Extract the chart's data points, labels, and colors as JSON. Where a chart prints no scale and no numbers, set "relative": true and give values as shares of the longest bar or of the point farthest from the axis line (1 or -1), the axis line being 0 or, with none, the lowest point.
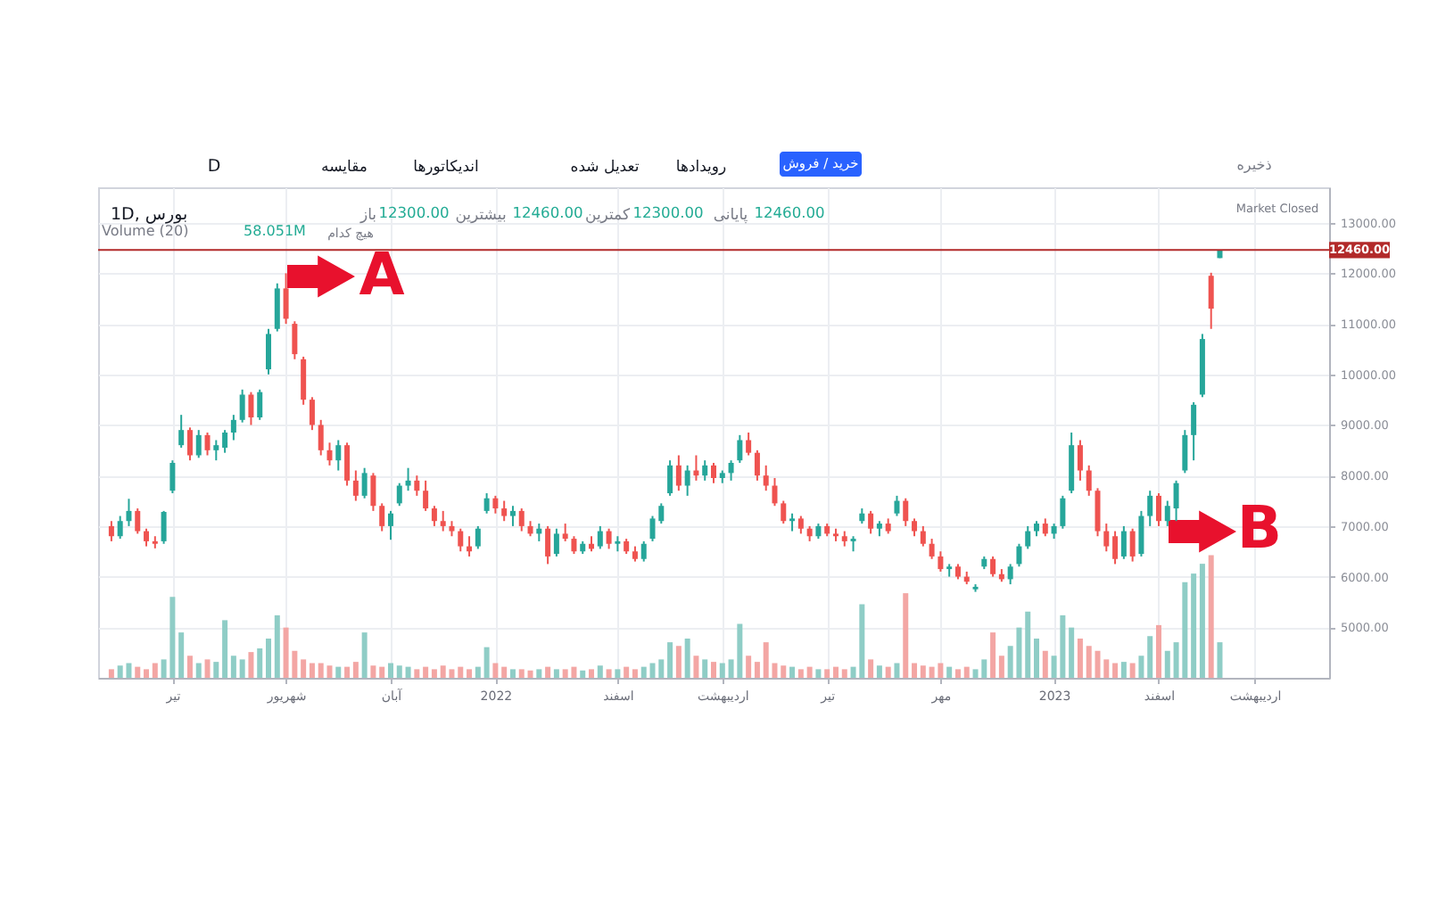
{
  "chart_data": [
    {
      "type": "candlestick",
      "title": "1D, بورس",
      "categories": [
        null,
        null,
        null,
        null,
        null,
        null,
        null,
        "تیر",
        null,
        null,
        null,
        null,
        null,
        null,
        null,
        null,
        null,
        null,
        null,
        null,
        "شهریور",
        null,
        null,
        null,
        null,
        null,
        null,
        null,
        null,
        null,
        null,
        null,
        "آبان",
        null,
        null,
        null,
        null,
        null,
        null,
        null,
        null,
        null,
        null,
        null,
        "2022",
        null,
        null,
        null,
        null,
        null,
        null,
        null,
        null,
        null,
        null,
        null,
        null,
        null,
        "اسفند",
        null,
        null,
        null,
        null,
        null,
        null,
        null,
        null,
        null,
        null,
        null,
        "اردیبهشت",
        null,
        null,
        null,
        null,
        null,
        null,
        null,
        null,
        null,
        null,
        null,
        "تیر",
        null,
        null,
        null,
        null,
        null,
        null,
        null,
        null,
        null,
        null,
        null,
        null,
        "مهر",
        null,
        null,
        null,
        null,
        null,
        null,
        null,
        null,
        null,
        null,
        null,
        null,
        "2023",
        null,
        null,
        null,
        null,
        null,
        null,
        null,
        null,
        null,
        null,
        null,
        "اسفند",
        null,
        null,
        null,
        null,
        null,
        null,
        null,
        null,
        null,
        null,
        "اردیبهشت",
        null,
        null,
        null,
        null,
        null,
        null,
        null
      ],
      "ohlc": [
        [
          7000,
          7100,
          6700,
          6800
        ],
        [
          6800,
          7200,
          6750,
          7100
        ],
        [
          7100,
          7540,
          7000,
          7300
        ],
        [
          7300,
          7350,
          6850,
          6900
        ],
        [
          6900,
          6950,
          6600,
          6700
        ],
        [
          6700,
          6800,
          6560,
          6650
        ],
        [
          6700,
          7300,
          6650,
          7280
        ],
        [
          7700,
          8300,
          7650,
          8250
        ],
        [
          8600,
          9200,
          8550,
          8900
        ],
        [
          8900,
          8950,
          8300,
          8400
        ],
        [
          8400,
          8900,
          8350,
          8800
        ],
        [
          8800,
          8850,
          8400,
          8500
        ],
        [
          8500,
          8700,
          8300,
          8600
        ],
        [
          8550,
          8900,
          8450,
          8850
        ],
        [
          8850,
          9200,
          8700,
          9100
        ],
        [
          9100,
          9700,
          9050,
          9600
        ],
        [
          9600,
          9650,
          9000,
          9150
        ],
        [
          9150,
          9700,
          9100,
          9650
        ],
        [
          10100,
          10900,
          10000,
          10800
        ],
        [
          10900,
          11800,
          10850,
          11700
        ],
        [
          11700,
          12000,
          11000,
          11100
        ],
        [
          11000,
          11050,
          10300,
          10400
        ],
        [
          10300,
          10350,
          9400,
          9500
        ],
        [
          9500,
          9550,
          8900,
          9000
        ],
        [
          9000,
          9100,
          8400,
          8500
        ],
        [
          8500,
          8650,
          8200,
          8300
        ],
        [
          8300,
          8700,
          8100,
          8600
        ],
        [
          8600,
          8650,
          7800,
          7900
        ],
        [
          7900,
          8100,
          7500,
          7600
        ],
        [
          7600,
          8150,
          7550,
          8050
        ],
        [
          8000,
          8050,
          7300,
          7400
        ],
        [
          7400,
          7450,
          6900,
          7000
        ],
        [
          7000,
          7300,
          6730,
          7250
        ],
        [
          7450,
          7850,
          7400,
          7800
        ],
        [
          7800,
          8150,
          7700,
          7900
        ],
        [
          7900,
          8000,
          7600,
          7700
        ],
        [
          7700,
          7900,
          7300,
          7350
        ],
        [
          7350,
          7400,
          7000,
          7100
        ],
        [
          7100,
          7300,
          6900,
          7000
        ],
        [
          7000,
          7100,
          6800,
          6900
        ],
        [
          6900,
          6950,
          6500,
          6600
        ],
        [
          6600,
          6800,
          6400,
          6500
        ],
        [
          6600,
          7000,
          6550,
          6950
        ],
        [
          7300,
          7650,
          7250,
          7550
        ],
        [
          7550,
          7600,
          7250,
          7350
        ],
        [
          7350,
          7500,
          7100,
          7200
        ],
        [
          7200,
          7400,
          7000,
          7300
        ],
        [
          7300,
          7350,
          6900,
          7000
        ],
        [
          7000,
          7100,
          6800,
          6850
        ],
        [
          6850,
          7050,
          6700,
          6950
        ],
        [
          6950,
          7000,
          6250,
          6400
        ],
        [
          6450,
          6950,
          6400,
          6850
        ],
        [
          6850,
          7050,
          6700,
          6750
        ],
        [
          6750,
          6800,
          6450,
          6500
        ],
        [
          6500,
          6700,
          6450,
          6650
        ],
        [
          6650,
          6800,
          6500,
          6550
        ],
        [
          6600,
          7000,
          6550,
          6900
        ],
        [
          6900,
          6950,
          6550,
          6650
        ],
        [
          6650,
          6800,
          6500,
          6700
        ],
        [
          6700,
          6750,
          6450,
          6500
        ],
        [
          6500,
          6600,
          6300,
          6350
        ],
        [
          6350,
          6700,
          6300,
          6650
        ],
        [
          6750,
          7200,
          6700,
          7150
        ],
        [
          7100,
          7450,
          7050,
          7400
        ],
        [
          7650,
          8300,
          7600,
          8200
        ],
        [
          8200,
          8400,
          7700,
          7800
        ],
        [
          7800,
          8200,
          7600,
          8100
        ],
        [
          8100,
          8400,
          7900,
          8000
        ],
        [
          8000,
          8300,
          7900,
          8200
        ],
        [
          8200,
          8250,
          7850,
          7950
        ],
        [
          7950,
          8100,
          7850,
          8050
        ],
        [
          8050,
          8300,
          7900,
          8250
        ],
        [
          8300,
          8800,
          8250,
          8700
        ],
        [
          8700,
          8850,
          8400,
          8450
        ],
        [
          8450,
          8500,
          7900,
          8000
        ],
        [
          8000,
          8200,
          7700,
          7800
        ],
        [
          7800,
          7950,
          7400,
          7450
        ],
        [
          7450,
          7500,
          7050,
          7100
        ],
        [
          7100,
          7250,
          6900,
          7150
        ],
        [
          7150,
          7200,
          6850,
          6950
        ],
        [
          6950,
          7000,
          6700,
          6800
        ],
        [
          6800,
          7050,
          6750,
          7000
        ],
        [
          7000,
          7050,
          6800,
          6850
        ],
        [
          6850,
          6950,
          6700,
          6800
        ],
        [
          6800,
          6900,
          6600,
          6700
        ],
        [
          6700,
          6800,
          6500,
          6750
        ],
        [
          7100,
          7350,
          7050,
          7250
        ],
        [
          7250,
          7300,
          6850,
          6950
        ],
        [
          6950,
          7100,
          6800,
          7050
        ],
        [
          7050,
          7150,
          6850,
          6900
        ],
        [
          7250,
          7600,
          7200,
          7500
        ],
        [
          7500,
          7550,
          7000,
          7100
        ],
        [
          7100,
          7150,
          6800,
          6900
        ],
        [
          6900,
          7000,
          6600,
          6650
        ],
        [
          6650,
          6750,
          6350,
          6400
        ],
        [
          6400,
          6500,
          6100,
          6150
        ],
        [
          6150,
          6250,
          6000,
          6200
        ],
        [
          6200,
          6250,
          5950,
          6000
        ],
        [
          6000,
          6100,
          5850,
          5900
        ],
        [
          5750,
          5850,
          5700,
          5800
        ],
        [
          6200,
          6400,
          6150,
          6350
        ],
        [
          6350,
          6400,
          6000,
          6050
        ],
        [
          6050,
          6150,
          5900,
          5950
        ],
        [
          5950,
          6250,
          5850,
          6200
        ],
        [
          6250,
          6650,
          6200,
          6600
        ],
        [
          6600,
          7000,
          6550,
          6900
        ],
        [
          6900,
          7100,
          6800,
          7050
        ],
        [
          7050,
          7150,
          6800,
          6850
        ],
        [
          6850,
          7050,
          6750,
          7000
        ],
        [
          7000,
          7600,
          6950,
          7550
        ],
        [
          7700,
          8850,
          7650,
          8600
        ],
        [
          8600,
          8700,
          7900,
          8100
        ],
        [
          8100,
          8200,
          7600,
          7700
        ],
        [
          7700,
          7750,
          6800,
          6900
        ],
        [
          6900,
          7050,
          6500,
          6600
        ],
        [
          6800,
          6900,
          6250,
          6350
        ],
        [
          6400,
          7000,
          6350,
          6900
        ],
        [
          6900,
          6950,
          6300,
          6400
        ],
        [
          6450,
          7300,
          6400,
          7200
        ],
        [
          7200,
          7700,
          7000,
          7600
        ],
        [
          7600,
          7650,
          7000,
          7100
        ],
        [
          7100,
          7500,
          7000,
          7400
        ],
        [
          7350,
          7900,
          7100,
          7850
        ],
        [
          8100,
          8900,
          8050,
          8800
        ],
        [
          8800,
          9450,
          8300,
          9400
        ],
        [
          9600,
          10800,
          9550,
          10700
        ],
        [
          11950,
          12010,
          10900,
          11300
        ],
        [
          12300,
          12460,
          12300,
          12460
        ],
        null,
        null,
        null,
        null,
        null,
        null,
        null,
        null,
        null,
        null,
        null
      ],
      "colors": [
        "#ef5350",
        "#26a69a",
        "#26a69a",
        "#ef5350",
        "#ef5350",
        "#ef5350",
        "#26a69a",
        "#26a69a",
        "#26a69a",
        "#ef5350",
        "#26a69a",
        "#ef5350",
        "#26a69a",
        "#26a69a",
        "#26a69a",
        "#26a69a",
        "#ef5350",
        "#26a69a",
        "#26a69a",
        "#26a69a",
        "#ef5350",
        "#ef5350",
        "#ef5350",
        "#ef5350",
        "#ef5350",
        "#ef5350",
        "#26a69a",
        "#ef5350",
        "#ef5350",
        "#26a69a",
        "#ef5350",
        "#ef5350",
        "#26a69a",
        "#26a69a",
        "#26a69a",
        "#ef5350",
        "#ef5350",
        "#ef5350",
        "#ef5350",
        "#ef5350",
        "#ef5350",
        "#ef5350",
        "#26a69a",
        "#26a69a",
        "#ef5350",
        "#ef5350",
        "#26a69a",
        "#ef5350",
        "#ef5350",
        "#26a69a",
        "#ef5350",
        "#26a69a",
        "#ef5350",
        "#ef5350",
        "#26a69a",
        "#ef5350",
        "#26a69a",
        "#ef5350",
        "#26a69a",
        "#ef5350",
        "#ef5350",
        "#26a69a",
        "#26a69a",
        "#26a69a",
        "#26a69a",
        "#ef5350",
        "#26a69a",
        "#ef5350",
        "#26a69a",
        "#ef5350",
        "#26a69a",
        "#26a69a",
        "#26a69a",
        "#ef5350",
        "#ef5350",
        "#ef5350",
        "#ef5350",
        "#ef5350",
        "#26a69a",
        "#ef5350",
        "#ef5350",
        "#26a69a",
        "#ef5350",
        "#ef5350",
        "#ef5350",
        "#26a69a",
        "#26a69a",
        "#ef5350",
        "#26a69a",
        "#ef5350",
        "#26a69a",
        "#ef5350",
        "#ef5350",
        "#ef5350",
        "#ef5350",
        "#ef5350",
        "#26a69a",
        "#ef5350",
        "#ef5350",
        "#26a69a",
        "#26a69a",
        "#ef5350",
        "#ef5350",
        "#26a69a",
        "#26a69a",
        "#26a69a",
        "#26a69a",
        "#ef5350",
        "#26a69a",
        "#26a69a",
        "#26a69a",
        "#ef5350",
        "#ef5350",
        "#ef5350",
        "#ef5350",
        "#ef5350",
        "#26a69a",
        "#ef5350",
        "#26a69a",
        "#26a69a",
        "#ef5350",
        "#26a69a",
        "#26a69a",
        "#26a69a",
        "#26a69a",
        "#26a69a",
        "#ef5350",
        "#26a69a",
        null,
        null,
        null,
        null,
        null,
        null,
        null,
        null,
        null,
        null,
        null
      ],
      "ylim": [
        4000,
        13700
      ],
      "yticks": [
        {
          "value": 5000,
          "label": "5000.00"
        },
        {
          "value": 6000,
          "label": "6000.00"
        },
        {
          "value": 7000,
          "label": "7000.00"
        },
        {
          "value": 8000,
          "label": "8000.00"
        },
        {
          "value": 9000,
          "label": "9000.00"
        },
        {
          "value": 10000,
          "label": "10000.00"
        },
        {
          "value": 11000,
          "label": "11000.00"
        },
        {
          "value": 12000,
          "label": "12000.00"
        },
        {
          "value": 13000,
          "label": "13000.00"
        }
      ],
      "ref_lines": [
        {
          "axis": "y",
          "value": 12460,
          "label": "12460.00",
          "color": "#b22a2a"
        }
      ],
      "annotations": [
        "D",
        "مقایسه",
        "اندیکاتورها",
        "تعدیل شده",
        "رویدادها",
        "خرید / فروش",
        "ذخیره",
        "باز",
        "12300.00",
        "بیشترین",
        "12460.00",
        "کمترین",
        "12300.00",
        "پایانی",
        "12460.00",
        "Market Closed",
        "A",
        "B"
      ],
      "grid": true
    },
    {
      "type": "bar",
      "relative": true,
      "title": "Volume (20)",
      "categories": [
        null,
        null,
        null,
        null,
        null,
        null,
        null,
        null,
        null,
        null,
        null,
        null,
        null,
        null,
        null,
        null,
        null,
        null,
        null,
        null,
        null,
        null,
        null,
        null,
        null,
        null,
        null,
        null,
        null,
        null,
        null,
        null,
        null,
        null,
        null,
        null,
        null,
        null,
        null,
        null,
        null,
        null,
        null,
        null,
        null,
        null,
        null,
        null,
        null,
        null,
        null,
        null,
        null,
        null,
        null,
        null,
        null,
        null,
        null,
        null,
        null,
        null,
        null,
        null,
        null,
        null,
        null,
        null,
        null,
        null,
        null,
        null,
        null,
        null,
        null,
        null,
        null,
        null,
        null,
        null,
        null,
        null,
        null,
        null,
        null,
        null,
        null,
        null,
        null,
        null,
        null,
        null,
        null,
        null,
        null,
        null,
        null,
        null,
        null,
        null,
        null,
        null,
        null,
        null,
        null,
        null,
        null,
        null,
        null,
        null,
        null,
        null,
        null,
        null,
        null,
        null,
        null,
        null,
        null,
        null,
        null,
        null,
        null,
        null,
        null,
        null,
        null,
        null,
        null,
        null,
        null,
        null,
        null,
        null,
        null,
        null,
        null,
        null,
        null
      ],
      "values": [
        0.07,
        0.1,
        0.12,
        0.09,
        0.07,
        0.12,
        0.15,
        0.66,
        0.37,
        0.18,
        0.12,
        0.15,
        0.13,
        0.47,
        0.18,
        0.15,
        0.21,
        0.24,
        0.32,
        0.51,
        0.41,
        0.22,
        0.15,
        0.12,
        0.12,
        0.1,
        0.09,
        0.09,
        0.13,
        0.37,
        0.1,
        0.09,
        0.12,
        0.1,
        0.09,
        0.07,
        0.09,
        0.07,
        0.1,
        0.07,
        0.09,
        0.07,
        0.09,
        0.25,
        0.12,
        0.09,
        0.07,
        0.07,
        0.06,
        0.07,
        0.09,
        0.07,
        0.07,
        0.09,
        0.06,
        0.07,
        0.1,
        0.07,
        0.07,
        0.09,
        0.07,
        0.09,
        0.12,
        0.15,
        0.29,
        0.26,
        0.32,
        0.18,
        0.15,
        0.13,
        0.12,
        0.15,
        0.44,
        0.18,
        0.13,
        0.29,
        0.12,
        0.1,
        0.09,
        0.07,
        0.09,
        0.07,
        0.07,
        0.09,
        0.07,
        0.09,
        0.6,
        0.15,
        0.1,
        0.09,
        0.12,
        0.69,
        0.12,
        0.1,
        0.09,
        0.12,
        0.09,
        0.07,
        0.09,
        0.07,
        0.15,
        0.37,
        0.18,
        0.26,
        0.41,
        0.54,
        0.32,
        0.22,
        0.18,
        0.51,
        0.41,
        0.32,
        0.26,
        0.22,
        0.15,
        0.12,
        0.13,
        0.12,
        0.18,
        0.34,
        0.43,
        0.22,
        0.29,
        0.78,
        0.85,
        0.93,
        1,
        0.29,
        null,
        null,
        null,
        null,
        null,
        null,
        null,
        null,
        null,
        null,
        null
      ],
      "colors": [
        "#f3a6a4",
        "#8fcdc6",
        "#8fcdc6",
        "#f3a6a4",
        "#f3a6a4",
        "#f3a6a4",
        "#8fcdc6",
        "#8fcdc6",
        "#8fcdc6",
        "#f3a6a4",
        "#8fcdc6",
        "#f3a6a4",
        "#8fcdc6",
        "#8fcdc6",
        "#8fcdc6",
        "#8fcdc6",
        "#f3a6a4",
        "#8fcdc6",
        "#8fcdc6",
        "#8fcdc6",
        "#f3a6a4",
        "#f3a6a4",
        "#f3a6a4",
        "#f3a6a4",
        "#f3a6a4",
        "#f3a6a4",
        "#8fcdc6",
        "#f3a6a4",
        "#f3a6a4",
        "#8fcdc6",
        "#f3a6a4",
        "#f3a6a4",
        "#8fcdc6",
        "#8fcdc6",
        "#8fcdc6",
        "#f3a6a4",
        "#f3a6a4",
        "#f3a6a4",
        "#f3a6a4",
        "#f3a6a4",
        "#f3a6a4",
        "#f3a6a4",
        "#8fcdc6",
        "#8fcdc6",
        "#f3a6a4",
        "#f3a6a4",
        "#8fcdc6",
        "#f3a6a4",
        "#f3a6a4",
        "#8fcdc6",
        "#f3a6a4",
        "#8fcdc6",
        "#f3a6a4",
        "#f3a6a4",
        "#8fcdc6",
        "#f3a6a4",
        "#8fcdc6",
        "#f3a6a4",
        "#8fcdc6",
        "#f3a6a4",
        "#f3a6a4",
        "#8fcdc6",
        "#8fcdc6",
        "#8fcdc6",
        "#8fcdc6",
        "#f3a6a4",
        "#8fcdc6",
        "#f3a6a4",
        "#8fcdc6",
        "#f3a6a4",
        "#8fcdc6",
        "#8fcdc6",
        "#8fcdc6",
        "#f3a6a4",
        "#f3a6a4",
        "#f3a6a4",
        "#f3a6a4",
        "#f3a6a4",
        "#8fcdc6",
        "#f3a6a4",
        "#f3a6a4",
        "#8fcdc6",
        "#f3a6a4",
        "#f3a6a4",
        "#f3a6a4",
        "#8fcdc6",
        "#8fcdc6",
        "#f3a6a4",
        "#8fcdc6",
        "#f3a6a4",
        "#8fcdc6",
        "#f3a6a4",
        "#f3a6a4",
        "#f3a6a4",
        "#f3a6a4",
        "#f3a6a4",
        "#8fcdc6",
        "#f3a6a4",
        "#f3a6a4",
        "#8fcdc6",
        "#8fcdc6",
        "#f3a6a4",
        "#f3a6a4",
        "#8fcdc6",
        "#8fcdc6",
        "#8fcdc6",
        "#8fcdc6",
        "#f3a6a4",
        "#8fcdc6",
        "#8fcdc6",
        "#8fcdc6",
        "#f3a6a4",
        "#f3a6a4",
        "#f3a6a4",
        "#f3a6a4",
        "#f3a6a4",
        "#8fcdc6",
        "#f3a6a4",
        "#8fcdc6",
        "#8fcdc6",
        "#f3a6a4",
        "#8fcdc6",
        "#8fcdc6",
        "#8fcdc6",
        "#8fcdc6",
        "#8fcdc6",
        "#f3a6a4",
        "#8fcdc6",
        null,
        null,
        null,
        null,
        null,
        null,
        null,
        null,
        null,
        null,
        null
      ],
      "annotations": [
        "58.051M",
        "هیچ کدام"
      ]
    }
  ]
}
